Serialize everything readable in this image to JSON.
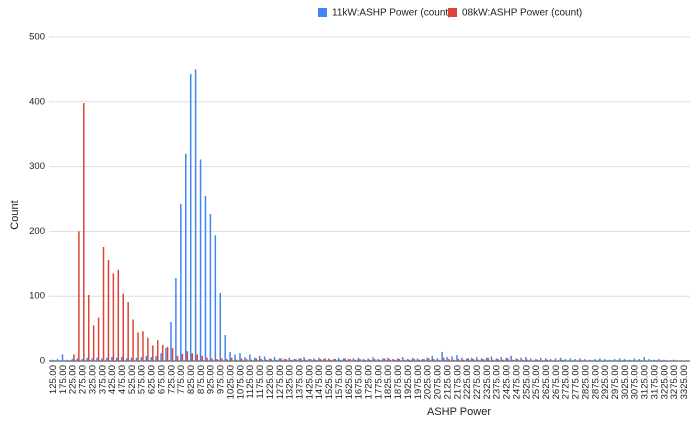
{
  "chart_data": {
    "type": "bar",
    "x_label": "ASHP Power",
    "y_label": "Count",
    "categories": [
      "125.00",
      null,
      "175.00",
      null,
      "225.00",
      null,
      "275.00",
      null,
      "325.00",
      null,
      "375.00",
      null,
      "425.00",
      null,
      "475.00",
      null,
      "525.00",
      null,
      "575.00",
      null,
      "625.00",
      null,
      "675.00",
      null,
      "725.00",
      null,
      "775.00",
      null,
      "825.00",
      null,
      "875.00",
      null,
      "925.00",
      null,
      "975.00",
      null,
      "1025.00",
      null,
      "1075.00",
      null,
      "1125.00",
      null,
      "1175.00",
      null,
      "1225.00",
      null,
      "1275.00",
      null,
      "1325.00",
      null,
      "1375.00",
      null,
      "1425.00",
      null,
      "1475.00",
      null,
      "1525.00",
      null,
      "1575.00",
      null,
      "1625.00",
      null,
      "1675.00",
      null,
      "1725.00",
      null,
      "1775.00",
      null,
      "1825.00",
      null,
      "1875.00",
      null,
      "1925.00",
      null,
      "1975.00",
      null,
      "2025.00",
      null,
      "2075.00",
      null,
      "2125.00",
      null,
      "2175.00",
      null,
      "2225.00",
      null,
      "2275.00",
      null,
      "2325.00",
      null,
      "2375.00",
      null,
      "2425.00",
      null,
      "2475.00",
      null,
      "2525.00",
      null,
      "2575.00",
      null,
      "2625.00",
      null,
      "2675.00",
      null,
      "2725.00",
      null,
      "2775.00",
      null,
      "2825.00",
      null,
      "2875.00",
      null,
      "2925.00",
      null,
      "2975.00",
      null,
      "3025.00",
      null,
      "3075.00",
      null,
      "3125.00",
      null,
      "3175.00",
      null,
      "3225.00",
      null,
      "3275.00",
      null,
      "3325.00"
    ],
    "series": [
      {
        "name": "11kW:ASHP Power (count)",
        "color": "#4285f4",
        "values": [
          2,
          3,
          10,
          2,
          3,
          4,
          3,
          5,
          4,
          5,
          4,
          5,
          6,
          5,
          6,
          4,
          5,
          5,
          6,
          8,
          6,
          8,
          12,
          20,
          60,
          128,
          242,
          320,
          443,
          450,
          311,
          255,
          227,
          194,
          105,
          40,
          14,
          10,
          12,
          6,
          10,
          5,
          8,
          7,
          4,
          6,
          4,
          3,
          5,
          3,
          4,
          6,
          3,
          4,
          5,
          3,
          4,
          3,
          5,
          4,
          3,
          4,
          5,
          3,
          4,
          6,
          3,
          4,
          5,
          3,
          4,
          6,
          3,
          5,
          4,
          3,
          5,
          8,
          4,
          14,
          6,
          7,
          9,
          5,
          4,
          5,
          6,
          4,
          5,
          7,
          4,
          6,
          5,
          8,
          4,
          5,
          6,
          4,
          3,
          5,
          4,
          3,
          4,
          5,
          3,
          4,
          3,
          4,
          3,
          2,
          3,
          4,
          3,
          2,
          3,
          4,
          3,
          2,
          4,
          3,
          6,
          3,
          2,
          3,
          2,
          1,
          2,
          1,
          1
        ]
      },
      {
        "name": "08kW:ASHP Power (count)",
        "color": "#db4437",
        "values": [
          0,
          0,
          0,
          0,
          10,
          200,
          398,
          102,
          55,
          67,
          176,
          156,
          135,
          141,
          104,
          91,
          64,
          44,
          46,
          36,
          24,
          32,
          25,
          22,
          20,
          8,
          11,
          15,
          12,
          10,
          8,
          5,
          4,
          3,
          4,
          3,
          5,
          2,
          4,
          3,
          2,
          4,
          3,
          2,
          3,
          2,
          4,
          3,
          2,
          3,
          4,
          2,
          3,
          2,
          3,
          4,
          2,
          3,
          2,
          4,
          3,
          2,
          3,
          2,
          2,
          3,
          2,
          4,
          3,
          2,
          3,
          2,
          2,
          3,
          2,
          3,
          4,
          3,
          2,
          5,
          3,
          2,
          3,
          2,
          4,
          3,
          2,
          3,
          5,
          2,
          3,
          2,
          4,
          2,
          3,
          2,
          2,
          1,
          2,
          1,
          2,
          1,
          1,
          2,
          1,
          0,
          1,
          0,
          1,
          0,
          0,
          1,
          0,
          0,
          0,
          0,
          0,
          0,
          0,
          0,
          0,
          0,
          0,
          0,
          0,
          0,
          0,
          0,
          0
        ]
      }
    ],
    "ylim": [
      0,
      500
    ],
    "yticks": [
      0,
      100,
      200,
      300,
      400,
      500
    ],
    "grid": true,
    "legend": "top"
  }
}
